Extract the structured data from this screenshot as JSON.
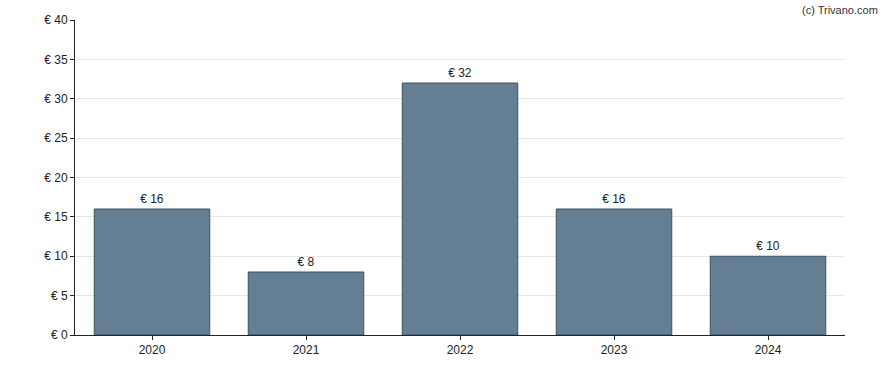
{
  "chart_data": {
    "type": "bar",
    "categories": [
      "2020",
      "2021",
      "2022",
      "2023",
      "2024"
    ],
    "values": [
      16,
      8,
      32,
      16,
      10
    ],
    "value_labels": [
      "€ 16",
      "€ 8",
      "€ 32",
      "€ 16",
      "€ 10"
    ],
    "color": "#647f94",
    "ylim": [
      0,
      40
    ],
    "yticks": [
      {
        "value": 0,
        "label": "€ 0"
      },
      {
        "value": 5,
        "label": "€ 5"
      },
      {
        "value": 10,
        "label": "€ 10"
      },
      {
        "value": 15,
        "label": "€ 15"
      },
      {
        "value": 20,
        "label": "€ 20"
      },
      {
        "value": 25,
        "label": "€ 25"
      },
      {
        "value": 30,
        "label": "€ 30"
      },
      {
        "value": 35,
        "label": "€ 35"
      },
      {
        "value": 40,
        "label": "€ 40"
      }
    ],
    "grid": true,
    "data_labels": true,
    "annotations": [
      "(c) Trivano.com"
    ]
  }
}
